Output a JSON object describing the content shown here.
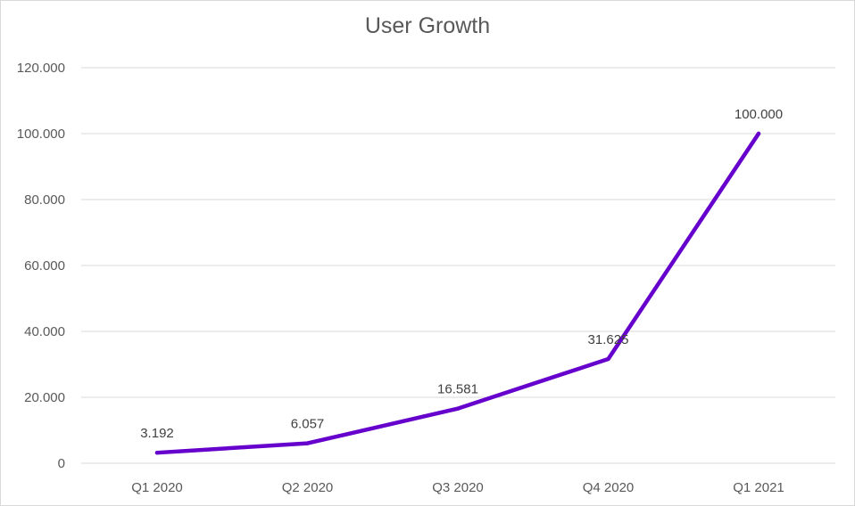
{
  "chart_data": {
    "type": "line",
    "title": "User Growth",
    "xlabel": "",
    "ylabel": "",
    "categories": [
      "Q1 2020",
      "Q2 2020",
      "Q3 2020",
      "Q4 2020",
      "Q1 2021"
    ],
    "series": [
      {
        "values": [
          3192,
          6057,
          16581,
          31625,
          100000
        ],
        "data_labels": [
          "3.192",
          "6.057",
          "16.581",
          "31.625",
          "100.000"
        ],
        "color": "#6600cc"
      }
    ],
    "ylim": [
      0,
      120000
    ],
    "yticks": [
      0,
      20000,
      40000,
      60000,
      80000,
      100000,
      120000
    ],
    "ytick_labels": [
      "0",
      "20.000",
      "40.000",
      "60.000",
      "80.000",
      "100.000",
      "120.000"
    ],
    "grid": true,
    "legend": "none"
  },
  "colors": {
    "gridline": "#d9d9d9",
    "axis_text": "#595959"
  }
}
